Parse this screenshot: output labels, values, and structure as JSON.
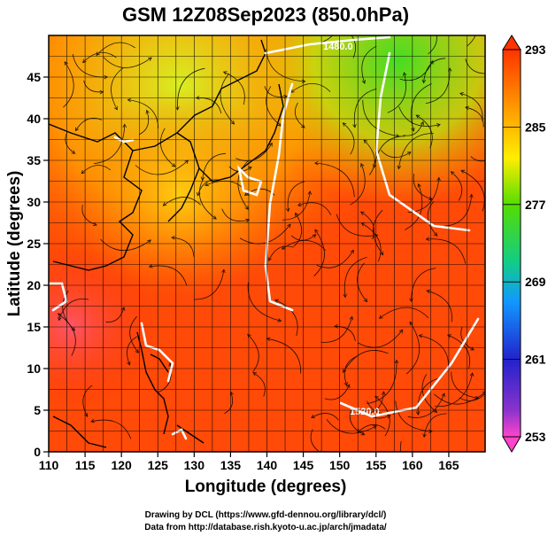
{
  "title": "GSM 12Z08Sep2023 (850.0hPa)",
  "axes": {
    "xlabel": "Longitude (degrees)",
    "ylabel": "Latitude  (degrees)",
    "xticks": [
      "110",
      "115",
      "120",
      "125",
      "130",
      "135",
      "140",
      "145",
      "150",
      "155",
      "160",
      "165"
    ],
    "yticks": [
      "0",
      "5",
      "10",
      "15",
      "20",
      "25",
      "30",
      "35",
      "40",
      "45"
    ],
    "xrange": [
      110,
      170
    ],
    "yrange": [
      0,
      50
    ]
  },
  "colorbar": {
    "labels": [
      "293",
      "285",
      "277",
      "269",
      "261",
      "253"
    ],
    "range": [
      253,
      293
    ],
    "colors": [
      "#ff44cc",
      "#2222cc",
      "#1199ff",
      "#11cc88",
      "#55dd00",
      "#ffee00",
      "#ff9900",
      "#ff3300"
    ]
  },
  "contour_labels": [
    "1480.0",
    "1520.0"
  ],
  "credits": {
    "line1": "Drawing by DCL (https://www.gfd-dennou.org/library/dcl/)",
    "line2": "Data from http://database.rish.kyoto-u.ac.jp/arch/jmadata/"
  },
  "colors": {
    "land_outline": "#000000",
    "contour": "#ffffff",
    "streamline": "#000000"
  }
}
